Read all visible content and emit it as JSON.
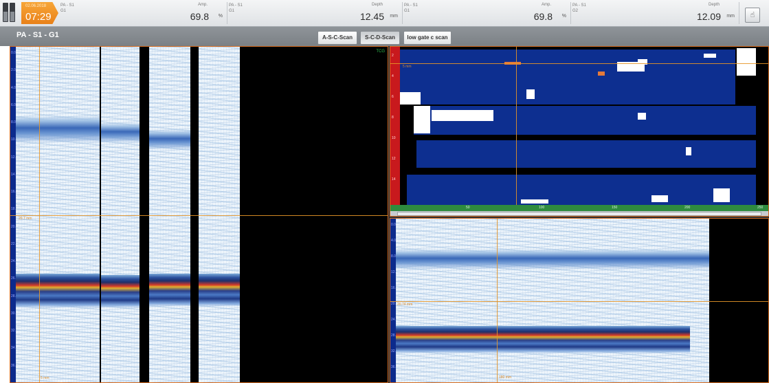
{
  "topbar": {
    "clock": {
      "date": "02.06.2018",
      "time": "07:29"
    },
    "measurements": [
      {
        "label": "PA - S1",
        "gate": "G1",
        "kind": "Amp.",
        "value": "69.8",
        "unit": "%"
      },
      {
        "label": "PA - S1",
        "gate": "G1",
        "kind": "Depth",
        "value": "12.45",
        "unit": "mm"
      },
      {
        "label": "PA - S1",
        "gate": "G1",
        "kind": "Amp.",
        "value": "69.8",
        "unit": "%"
      },
      {
        "label": "PA - S1",
        "gate": "G2",
        "kind": "Depth",
        "value": "12.09",
        "unit": "mm"
      }
    ],
    "settings_icon": "pointer-hand-icon"
  },
  "titlebar": {
    "group_title": "PA - S1 - G1",
    "views": [
      {
        "label": "A-S-C-Scan",
        "active": false
      },
      {
        "label": "S-C-D-Scan",
        "active": true
      },
      {
        "label": "low gate c scan",
        "active": false
      }
    ]
  },
  "left_panel": {
    "tag": "TCG",
    "cursor_label": "20.7 mm",
    "bottom_label": "5 mm",
    "ticks": [
      "0.0",
      "2.0",
      "4.0",
      "6.0",
      "8.0",
      "10.0",
      "12.0",
      "14.0",
      "16.0",
      "18.0",
      "20.0",
      "22.0",
      "24.0",
      "26.0",
      "28.0",
      "30.0",
      "32.0",
      "34.0",
      "36.0"
    ]
  },
  "cscan_panel": {
    "cursor_label": "5 mm",
    "x_ticks": [
      "50",
      "100",
      "150",
      "200",
      "250"
    ],
    "y_ticks": [
      "2",
      "4",
      "6",
      "8",
      "10",
      "12",
      "14"
    ]
  },
  "dscan_panel": {
    "cursor_label": "20.74 mm",
    "bottom_label": "180 mm",
    "ticks": [
      "0.0",
      "4.0",
      "8.0",
      "12.0",
      "16.0",
      "20.0",
      "24.0",
      "28.0",
      "32.0",
      "36.0"
    ]
  }
}
